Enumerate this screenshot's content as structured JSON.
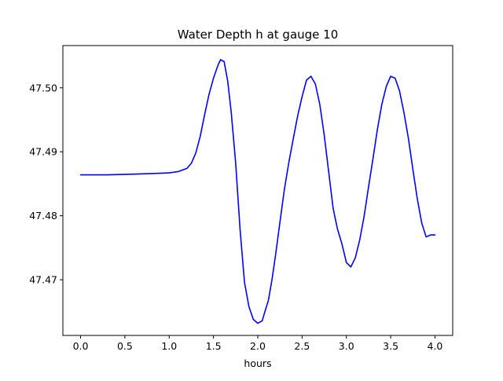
{
  "chart_data": {
    "type": "line",
    "title": "Water Depth h at gauge 10",
    "xlabel": "hours",
    "ylabel": "",
    "xlim": [
      -0.2,
      4.2
    ],
    "ylim": [
      47.4613,
      47.5066
    ],
    "grid": false,
    "x_ticks": [
      0.0,
      0.5,
      1.0,
      1.5,
      2.0,
      2.5,
      3.0,
      3.5,
      4.0
    ],
    "x_tick_labels": [
      "0.0",
      "0.5",
      "1.0",
      "1.5",
      "2.0",
      "2.5",
      "3.0",
      "3.5",
      "4.0"
    ],
    "y_ticks": [
      47.47,
      47.48,
      47.49,
      47.5
    ],
    "y_tick_labels": [
      "47.47",
      "47.48",
      "47.49",
      "47.50"
    ],
    "series": [
      {
        "color": "#0000ff",
        "x": [
          0.0,
          0.3,
          0.6,
          0.8,
          1.0,
          1.1,
          1.2,
          1.25,
          1.3,
          1.35,
          1.4,
          1.45,
          1.5,
          1.55,
          1.58,
          1.62,
          1.66,
          1.7,
          1.75,
          1.8,
          1.85,
          1.9,
          1.95,
          2.0,
          2.05,
          2.08,
          2.12,
          2.16,
          2.2,
          2.25,
          2.3,
          2.35,
          2.4,
          2.45,
          2.5,
          2.55,
          2.6,
          2.65,
          2.7,
          2.75,
          2.8,
          2.85,
          2.9,
          2.95,
          3.0,
          3.05,
          3.1,
          3.15,
          3.2,
          3.25,
          3.3,
          3.35,
          3.4,
          3.45,
          3.5,
          3.55,
          3.6,
          3.65,
          3.7,
          3.75,
          3.8,
          3.85,
          3.9,
          3.95,
          4.0
        ],
        "y": [
          47.4864,
          47.4864,
          47.4865,
          47.4866,
          47.4867,
          47.4869,
          47.4874,
          47.4882,
          47.4898,
          47.4924,
          47.4958,
          47.499,
          47.5015,
          47.5035,
          47.5044,
          47.5041,
          47.5011,
          47.4962,
          47.4883,
          47.4779,
          47.4696,
          47.4658,
          47.4638,
          47.4632,
          47.4636,
          47.465,
          47.4668,
          47.47,
          47.4738,
          47.479,
          47.4841,
          47.4883,
          47.492,
          47.4956,
          47.4986,
          47.5012,
          47.5018,
          47.5006,
          47.4974,
          47.4926,
          47.4869,
          47.4812,
          47.4779,
          47.4756,
          47.4727,
          47.472,
          47.4734,
          47.4762,
          47.4799,
          47.4845,
          47.4889,
          47.4935,
          47.4974,
          47.5002,
          47.5018,
          47.5015,
          47.4995,
          47.4961,
          47.4921,
          47.4873,
          47.4827,
          47.4789,
          47.4767,
          47.477,
          47.477
        ]
      }
    ]
  }
}
